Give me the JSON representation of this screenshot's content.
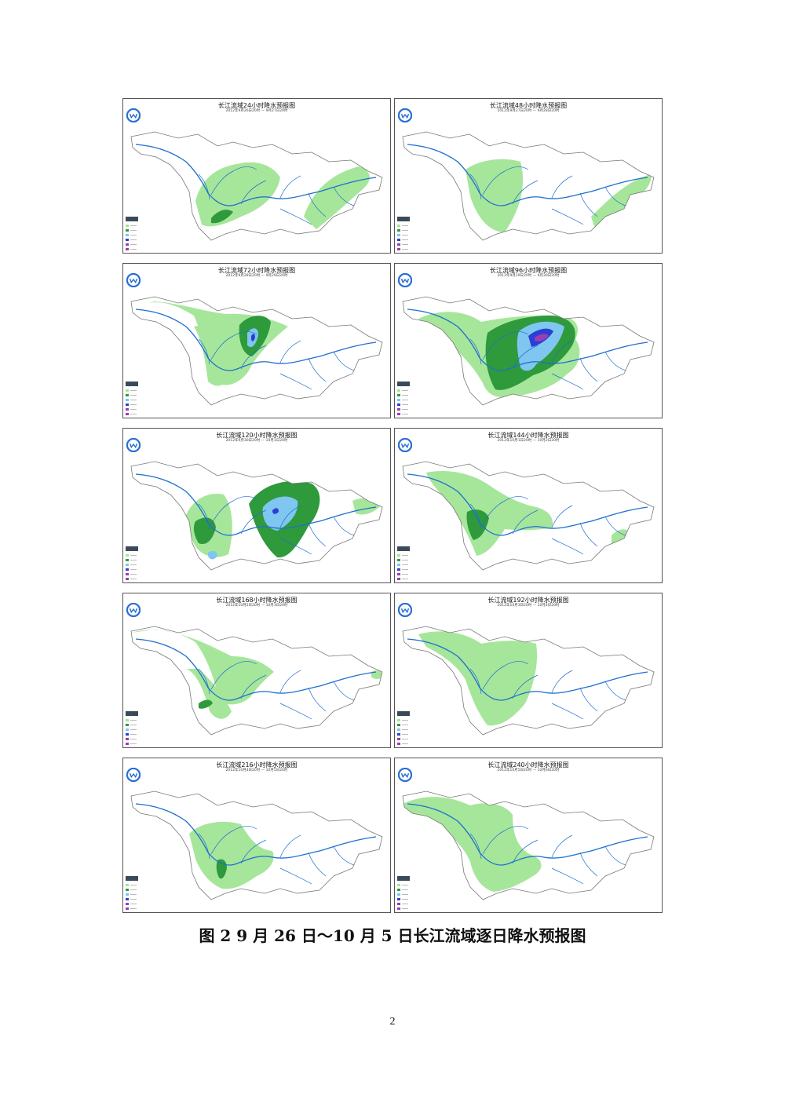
{
  "panels": [
    {
      "title": "长江流域24小时降水预报图",
      "subtitle": "2012年9月26日20时 — 9月27日20时"
    },
    {
      "title": "长江流域48小时降水预报图",
      "subtitle": "2012年9月27日20时 — 9月28日20时"
    },
    {
      "title": "长江流域72小时降水预报图",
      "subtitle": "2012年9月28日20时 — 9月29日20时"
    },
    {
      "title": "长江流域96小时降水预报图",
      "subtitle": "2012年9月29日20时 — 9月30日20时"
    },
    {
      "title": "长江流域120小时降水预报图",
      "subtitle": "2012年9月30日20时 — 10月1日20时"
    },
    {
      "title": "长江流域144小时降水预报图",
      "subtitle": "2012年10月1日20时 — 10月2日20时"
    },
    {
      "title": "长江流域168小时降水预报图",
      "subtitle": "2012年10月2日20时 — 10月3日20时"
    },
    {
      "title": "长江流域192小时降水预报图",
      "subtitle": "2012年10月3日20时 — 10月4日20时"
    },
    {
      "title": "长江流域216小时降水预报图",
      "subtitle": "2012年10月4日20时 — 10月5日20时"
    },
    {
      "title": "长江流域240小时降水预报图",
      "subtitle": "2012年10月5日20时 — 10月6日20时"
    }
  ],
  "colors": {
    "light_green": "#a6e69a",
    "dark_green": "#2e9a3c",
    "light_blue": "#7fc6f0",
    "blue": "#2a3fd6",
    "purple": "#9a3fb0",
    "river": "#1e6fd0"
  },
  "caption": "图 2    9 月 26 日～10 月 5 日长江流域逐日降水预报图",
  "page_number": "2"
}
